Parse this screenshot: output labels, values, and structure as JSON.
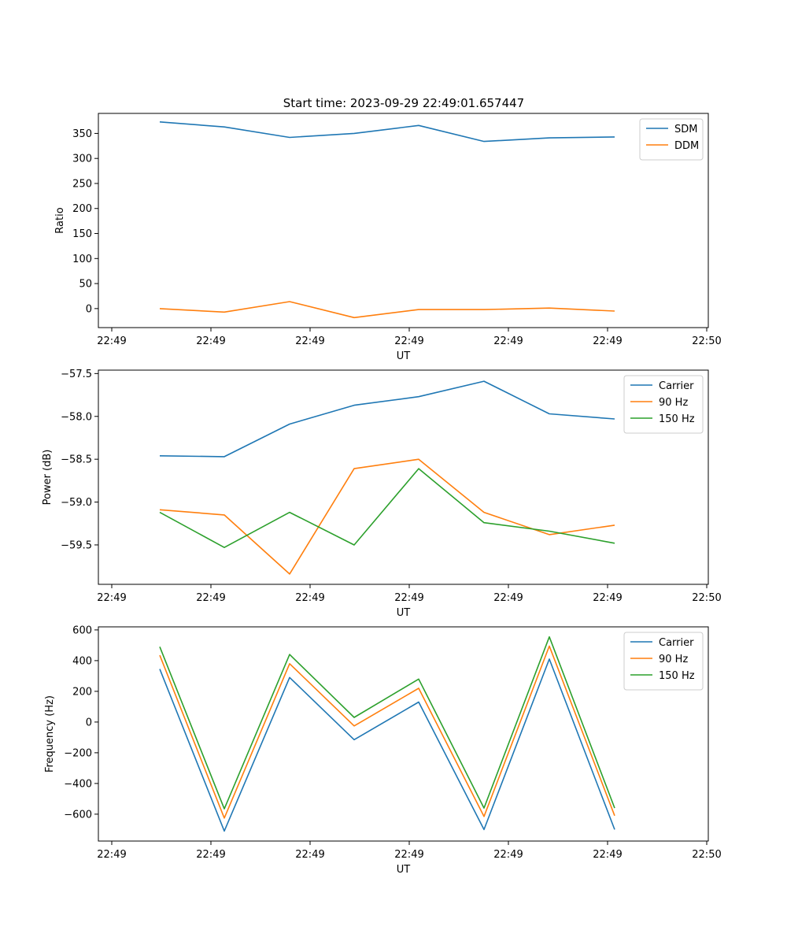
{
  "title": "Start time: 2023-09-29 22:49:01.657447",
  "chart_data": [
    {
      "type": "line",
      "xlabel": "UT",
      "ylabel": "Ratio",
      "xticks": [
        "22:49",
        "22:49",
        "22:49",
        "22:49",
        "22:49",
        "22:49",
        "22:49"
      ],
      "xtick_last": "22:50",
      "x": [
        1,
        2,
        3,
        4,
        5,
        6,
        7,
        8
      ],
      "xlim": [
        0.55,
        9.55
      ],
      "ylim": [
        -38,
        390
      ],
      "yticks": [
        0,
        50,
        100,
        150,
        200,
        250,
        300,
        350
      ],
      "ytick_labels": [
        "0",
        "50",
        "100",
        "150",
        "200",
        "250",
        "300",
        "350"
      ],
      "legend": "top-right",
      "series": [
        {
          "name": "SDM",
          "color": "#1f77b4",
          "values": [
            373,
            363,
            342,
            350,
            366,
            334,
            341,
            343
          ]
        },
        {
          "name": "DDM",
          "color": "#ff7f0e",
          "values": [
            0,
            -7,
            14,
            -18,
            -2,
            -2,
            1,
            -5
          ]
        }
      ]
    },
    {
      "type": "line",
      "xlabel": "UT",
      "ylabel": "Power (dB)",
      "xticks": [
        "22:49",
        "22:49",
        "22:49",
        "22:49",
        "22:49",
        "22:49",
        "22:49"
      ],
      "xtick_last": "22:50",
      "x": [
        1,
        2,
        3,
        4,
        5,
        6,
        7,
        8
      ],
      "xlim": [
        0.55,
        9.55
      ],
      "ylim": [
        -59.96,
        -57.46
      ],
      "yticks": [
        -59.5,
        -59.0,
        -58.5,
        -58.0,
        -57.5
      ],
      "ytick_labels": [
        "−59.5",
        "−59.0",
        "−58.5",
        "−58.0",
        "−57.5"
      ],
      "legend": "top-right",
      "series": [
        {
          "name": "Carrier",
          "color": "#1f77b4",
          "values": [
            -58.46,
            -58.47,
            -58.09,
            -57.87,
            -57.77,
            -57.59,
            -57.97,
            -58.03
          ]
        },
        {
          "name": "90 Hz",
          "color": "#ff7f0e",
          "values": [
            -59.09,
            -59.15,
            -59.84,
            -58.61,
            -58.5,
            -59.12,
            -59.38,
            -59.27
          ]
        },
        {
          "name": "150 Hz",
          "color": "#2ca02c",
          "values": [
            -59.12,
            -59.53,
            -59.12,
            -59.5,
            -58.61,
            -59.24,
            -59.34,
            -59.48
          ]
        }
      ]
    },
    {
      "type": "line",
      "xlabel": "UT",
      "ylabel": "Frequency (Hz)",
      "xticks": [
        "22:49",
        "22:49",
        "22:49",
        "22:49",
        "22:49",
        "22:49",
        "22:49"
      ],
      "xtick_last": "22:50",
      "x": [
        1,
        2,
        3,
        4,
        5,
        6,
        7,
        8
      ],
      "xlim": [
        0.55,
        9.55
      ],
      "ylim": [
        -775,
        620
      ],
      "yticks": [
        -600,
        -400,
        -200,
        0,
        200,
        400,
        600
      ],
      "ytick_labels": [
        "−600",
        "−400",
        "−200",
        "0",
        "200",
        "400",
        "600"
      ],
      "legend": "top-right",
      "series": [
        {
          "name": "Carrier",
          "color": "#1f77b4",
          "values": [
            345,
            -710,
            290,
            -115,
            130,
            -700,
            410,
            -700
          ]
        },
        {
          "name": "90 Hz",
          "color": "#ff7f0e",
          "values": [
            435,
            -625,
            380,
            -25,
            220,
            -615,
            495,
            -610
          ]
        },
        {
          "name": "150 Hz",
          "color": "#2ca02c",
          "values": [
            490,
            -565,
            440,
            30,
            280,
            -560,
            555,
            -560
          ]
        }
      ]
    }
  ]
}
